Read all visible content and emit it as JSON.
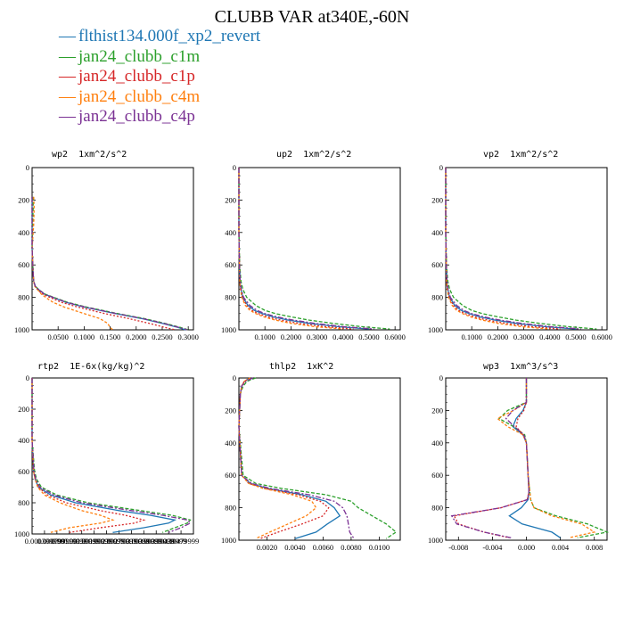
{
  "title": "CLUBB VAR at340E,-60N",
  "legend": [
    {
      "label": "flthist134.000f_xp2_revert",
      "color": "#1f77b4"
    },
    {
      "label": "jan24_clubb_c1m",
      "color": "#2ca02c"
    },
    {
      "label": "jan24_clubb_c1p",
      "color": "#d62728"
    },
    {
      "label": "jan24_clubb_c4m",
      "color": "#ff7f0e"
    },
    {
      "label": "jan24_clubb_c4p",
      "color": "#7b3294"
    }
  ],
  "chart_data": [
    {
      "type": "line",
      "title": "wp2  1xm^2/s^2",
      "ylim": [
        1000,
        0
      ],
      "xlim": [
        0,
        0.31
      ],
      "xticks": [
        "0.0500",
        "0.1000",
        "0.1500",
        "0.2000",
        "0.2500",
        "0.3000"
      ],
      "yticks": [
        "0",
        "200",
        "400",
        "600",
        "800",
        "1000"
      ],
      "y": [
        180,
        250,
        350,
        500,
        650,
        700,
        730,
        750,
        780,
        800,
        830,
        860,
        900,
        930,
        960,
        985,
        1000
      ],
      "series": [
        {
          "values": [
            0,
            0,
            0,
            0,
            0.002,
            0.003,
            0.006,
            0.012,
            0.024,
            0.04,
            0.065,
            0.1,
            0.16,
            0.21,
            0.25,
            0.28,
            0.295
          ]
        },
        {
          "values": [
            0.002,
            0.002,
            0.001,
            0,
            0.002,
            0.003,
            0.006,
            0.012,
            0.025,
            0.042,
            0.068,
            0.105,
            0.165,
            0.215,
            0.255,
            0.285,
            0.3
          ]
        },
        {
          "values": [
            0,
            0,
            0,
            0,
            0.002,
            0.003,
            0.005,
            0.01,
            0.02,
            0.034,
            0.056,
            0.088,
            0.14,
            0.185,
            0.225,
            0.255,
            0.275
          ]
        },
        {
          "values": [
            0.003,
            0.004,
            0.003,
            0,
            0.002,
            0.003,
            0.005,
            0.01,
            0.018,
            0.026,
            0.04,
            0.062,
            0.1,
            0.13,
            0.145,
            0.15,
            0.155
          ]
        },
        {
          "values": [
            0,
            0,
            0,
            0,
            0.002,
            0.003,
            0.006,
            0.012,
            0.024,
            0.04,
            0.066,
            0.102,
            0.162,
            0.212,
            0.252,
            0.282,
            0.298
          ]
        }
      ]
    },
    {
      "type": "line",
      "title": "up2  1xm^2/s^2",
      "ylim": [
        1000,
        0
      ],
      "xlim": [
        0,
        0.62
      ],
      "xticks": [
        "0.1000",
        "0.2000",
        "0.3000",
        "0.4000",
        "0.5000",
        "0.6000"
      ],
      "yticks": [
        "0",
        "200",
        "400",
        "600",
        "800",
        "1000"
      ],
      "y": [
        0,
        200,
        400,
        600,
        700,
        750,
        800,
        850,
        880,
        900,
        920,
        940,
        960,
        980,
        995
      ],
      "series": [
        {
          "values": [
            0,
            0,
            0,
            0.002,
            0.004,
            0.008,
            0.015,
            0.035,
            0.06,
            0.09,
            0.13,
            0.19,
            0.27,
            0.38,
            0.5
          ]
        },
        {
          "values": [
            0,
            0,
            0,
            0.003,
            0.008,
            0.015,
            0.03,
            0.065,
            0.1,
            0.14,
            0.2,
            0.27,
            0.36,
            0.47,
            0.58
          ]
        },
        {
          "values": [
            0,
            0,
            0,
            0.002,
            0.004,
            0.007,
            0.013,
            0.03,
            0.05,
            0.075,
            0.11,
            0.16,
            0.23,
            0.33,
            0.44
          ]
        },
        {
          "values": [
            0,
            0,
            0,
            0.002,
            0.003,
            0.006,
            0.011,
            0.025,
            0.042,
            0.065,
            0.095,
            0.14,
            0.2,
            0.29,
            0.4
          ]
        },
        {
          "values": [
            0,
            0,
            0,
            0.002,
            0.005,
            0.009,
            0.018,
            0.042,
            0.07,
            0.1,
            0.145,
            0.21,
            0.29,
            0.4,
            0.52
          ]
        }
      ]
    },
    {
      "type": "line",
      "title": "vp2  1xm^2/s^2",
      "ylim": [
        1000,
        0
      ],
      "xlim": [
        0,
        0.62
      ],
      "xticks": [
        "0.1000",
        "0.2000",
        "0.3000",
        "0.4000",
        "0.5000",
        "0.6000"
      ],
      "yticks": [
        "0",
        "200",
        "400",
        "600",
        "800",
        "1000"
      ],
      "y": [
        0,
        200,
        400,
        600,
        700,
        750,
        800,
        850,
        880,
        900,
        920,
        940,
        960,
        980,
        995
      ],
      "series": [
        {
          "values": [
            0,
            0,
            0,
            0.002,
            0.004,
            0.008,
            0.015,
            0.035,
            0.06,
            0.09,
            0.13,
            0.19,
            0.27,
            0.38,
            0.5
          ]
        },
        {
          "values": [
            0,
            0,
            0,
            0.003,
            0.008,
            0.015,
            0.03,
            0.065,
            0.1,
            0.14,
            0.2,
            0.27,
            0.36,
            0.47,
            0.58
          ]
        },
        {
          "values": [
            0,
            0,
            0,
            0.002,
            0.004,
            0.007,
            0.013,
            0.03,
            0.05,
            0.075,
            0.11,
            0.16,
            0.23,
            0.33,
            0.44
          ]
        },
        {
          "values": [
            0,
            0,
            0,
            0.002,
            0.003,
            0.006,
            0.011,
            0.025,
            0.042,
            0.065,
            0.095,
            0.14,
            0.2,
            0.29,
            0.4
          ]
        },
        {
          "values": [
            0,
            0,
            0,
            0.002,
            0.005,
            0.009,
            0.018,
            0.042,
            0.07,
            0.1,
            0.145,
            0.21,
            0.29,
            0.4,
            0.52
          ]
        }
      ]
    },
    {
      "type": "line",
      "title": "rtp2  1E-6x(kg/kg)^2",
      "ylim": [
        1000,
        0
      ],
      "xlim": [
        0,
        0.0052
      ],
      "xticks": [
        "0.000399999",
        "0.000799999",
        "0.00119999",
        "0.00159999",
        "0.00199999",
        "0.00239999",
        "0.00279999",
        "0.00319999",
        "0.00359999",
        "0.00399999",
        "0.00439999",
        "0.00479999"
      ],
      "yticks": [
        "0",
        "200",
        "400",
        "600",
        "800",
        "1000"
      ],
      "y": [
        0,
        200,
        400,
        600,
        650,
        700,
        750,
        800,
        850,
        880,
        910,
        930,
        960,
        990
      ],
      "series": [
        {
          "values": [
            0,
            0,
            0,
            5e-05,
            0.0001,
            0.0002,
            0.0006,
            0.0014,
            0.0028,
            0.0038,
            0.0046,
            0.0044,
            0.0036,
            0.0026
          ]
        },
        {
          "values": [
            0,
            0,
            0,
            8e-05,
            0.00015,
            0.0003,
            0.0008,
            0.0018,
            0.0035,
            0.0045,
            0.0051,
            0.005,
            0.0046,
            0.0042
          ]
        },
        {
          "values": [
            0,
            0,
            0,
            5e-05,
            0.0001,
            0.0002,
            0.0005,
            0.0011,
            0.0022,
            0.003,
            0.0036,
            0.0033,
            0.0022,
            0.0012
          ]
        },
        {
          "values": [
            0,
            0,
            0,
            5e-05,
            0.0001,
            0.00018,
            0.0004,
            0.0009,
            0.0016,
            0.0022,
            0.0026,
            0.0022,
            0.0012,
            0.0006
          ]
        },
        {
          "values": [
            0,
            0,
            0,
            6e-05,
            0.00012,
            0.00025,
            0.0007,
            0.0016,
            0.0032,
            0.0042,
            0.005,
            0.0051,
            0.0048,
            0.0044
          ]
        }
      ]
    },
    {
      "type": "line",
      "title": "thlp2  1xK^2",
      "ylim": [
        1000,
        0
      ],
      "xlim": [
        0,
        0.0115
      ],
      "xticks": [
        "0.0020",
        "0.0040",
        "0.0060",
        "0.0080",
        "0.0100"
      ],
      "yticks": [
        "0",
        "200",
        "400",
        "600",
        "800",
        "1000"
      ],
      "y": [
        0,
        20,
        50,
        100,
        300,
        600,
        650,
        680,
        720,
        760,
        800,
        850,
        900,
        950,
        990
      ],
      "series": [
        {
          "values": [
            0.0008,
            0.0004,
            0.0002,
            0.0001,
            0,
            0.0002,
            0.0008,
            0.002,
            0.0045,
            0.0062,
            0.0068,
            0.0072,
            0.0063,
            0.0055,
            0.004
          ]
        },
        {
          "values": [
            0.0012,
            0.0006,
            0.0003,
            0.0001,
            0,
            0.0003,
            0.0012,
            0.003,
            0.0062,
            0.008,
            0.0085,
            0.0095,
            0.0105,
            0.0112,
            0.0105
          ]
        },
        {
          "values": [
            0.0008,
            0.0004,
            0.0002,
            0.0001,
            0,
            0.0002,
            0.0007,
            0.0018,
            0.0042,
            0.0058,
            0.0064,
            0.006,
            0.0045,
            0.0028,
            0.0015
          ]
        },
        {
          "values": [
            0.0008,
            0.0004,
            0.0002,
            0.0001,
            0,
            0.0002,
            0.0007,
            0.0017,
            0.0038,
            0.0052,
            0.0055,
            0.0048,
            0.0035,
            0.0022,
            0.0012
          ]
        },
        {
          "values": [
            0.001,
            0.0005,
            0.0002,
            0.0001,
            0,
            0.0002,
            0.0009,
            0.0022,
            0.005,
            0.0068,
            0.0074,
            0.0077,
            0.0078,
            0.0079,
            0.0082
          ]
        }
      ]
    },
    {
      "type": "line",
      "title": "wp3  1xm^3/s^3",
      "ylim": [
        1000,
        0
      ],
      "xlim": [
        -0.0095,
        0.0095
      ],
      "xticks": [
        "-0.008",
        "-0.004",
        "0.000",
        "0.004",
        "0.008"
      ],
      "yticks": [
        "0",
        "200",
        "400",
        "600",
        "800",
        "1000"
      ],
      "y": [
        0,
        150,
        200,
        250,
        300,
        350,
        400,
        500,
        600,
        700,
        750,
        800,
        850,
        900,
        950,
        985
      ],
      "series": [
        {
          "values": [
            0,
            0,
            -0.0004,
            -0.0012,
            -0.0016,
            -0.0004,
            0,
            0.0001,
            0.0002,
            0.0003,
            0.0002,
            -0.0006,
            -0.002,
            -0.0005,
            0.003,
            0.004
          ]
        },
        {
          "values": [
            0,
            0,
            -0.0022,
            -0.0032,
            -0.0015,
            -0.0002,
            0,
            0.0001,
            0.0002,
            0.0004,
            0.0005,
            0.0009,
            0.0035,
            0.0072,
            0.0095,
            0.006
          ]
        },
        {
          "values": [
            0,
            0,
            -0.0003,
            -0.001,
            -0.0012,
            -0.0004,
            0,
            0.0001,
            0.0002,
            0.0003,
            0.0001,
            -0.003,
            -0.0085,
            -0.008,
            -0.005,
            -0.002
          ]
        },
        {
          "values": [
            0,
            0,
            -0.0015,
            -0.0034,
            -0.0022,
            -0.0004,
            0,
            0.0001,
            0.0002,
            0.0004,
            0.0005,
            0.0009,
            0.003,
            0.0065,
            0.008,
            0.005
          ]
        },
        {
          "values": [
            0,
            0,
            -0.0016,
            -0.0024,
            -0.0014,
            -0.0003,
            0,
            0.0001,
            0.0002,
            0.0003,
            0.0001,
            -0.003,
            -0.0088,
            -0.0082,
            -0.005,
            -0.0018
          ]
        }
      ]
    }
  ]
}
